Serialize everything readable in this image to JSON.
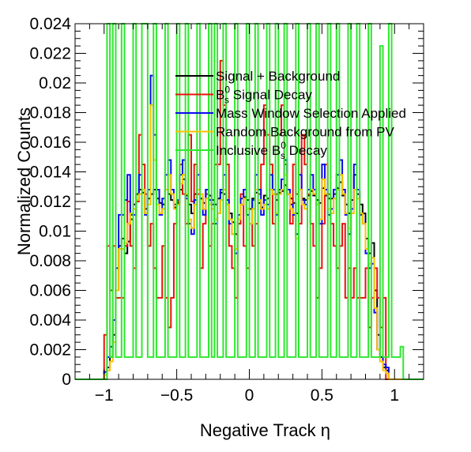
{
  "chart_data": {
    "type": "histogram",
    "xlabel": "Negative Track  η",
    "ylabel": "Normalized Counts",
    "xlim": [
      -1.2,
      1.2
    ],
    "ylim": [
      0,
      0.024
    ],
    "x_ticks": [
      -1,
      -0.5,
      0,
      0.5,
      1
    ],
    "x_tick_labels": [
      "−1",
      "−0.5",
      "0",
      "0.5",
      "1"
    ],
    "y_ticks": [
      0,
      0.002,
      0.004,
      0.006,
      0.008,
      0.01,
      0.012,
      0.014,
      0.016,
      0.018,
      0.02,
      0.022,
      0.024
    ],
    "y_tick_labels": [
      "0",
      "0.002",
      "0.004",
      "0.006",
      "0.008",
      "0.01",
      "0.012",
      "0.014",
      "0.016",
      "0.018",
      "0.02",
      "0.022",
      "0.024"
    ],
    "bins": {
      "min": -1.2,
      "max": 1.2,
      "count": 120
    },
    "legend_placement": "top-right",
    "series": [
      {
        "name": "Signal + Background",
        "color": "#000000",
        "values": [
          0,
          0,
          0,
          0,
          0,
          0,
          0,
          0,
          0,
          0,
          0.0005,
          0.0008,
          0.0015,
          0.003,
          0.006,
          0.009,
          0.0095,
          0.0085,
          0.0093,
          0.0108,
          0.0118,
          0.0125,
          0.0128,
          0.0126,
          0.0115,
          0.0122,
          0.0125,
          0.0128,
          0.0122,
          0.0119,
          0.0118,
          0.0128,
          0.0125,
          0.0121,
          0.0116,
          0.0119,
          0.0128,
          0.0135,
          0.0124,
          0.0118,
          0.0112,
          0.0125,
          0.0128,
          0.0122,
          0.0119,
          0.0128,
          0.0124,
          0.0121,
          0.0118,
          0.0122,
          0.0126,
          0.0125,
          0.0118,
          0.0112,
          0.0106,
          0.0098,
          0.0105,
          0.0118,
          0.0123,
          0.0121,
          0.0115,
          0.0122,
          0.0126,
          0.0119,
          0.0116,
          0.0124,
          0.0122,
          0.0128,
          0.0125,
          0.0121,
          0.0126,
          0.0127,
          0.0131,
          0.0125,
          0.0122,
          0.0119,
          0.0112,
          0.0128,
          0.0122,
          0.0121,
          0.0124,
          0.0127,
          0.0124,
          0.0121,
          0.0119,
          0.0129,
          0.0124,
          0.0122,
          0.0122,
          0.0125,
          0.0129,
          0.0133,
          0.0124,
          0.0118,
          0.0112,
          0.0121,
          0.0138,
          0.0125,
          0.0118,
          0.0112,
          0.0095,
          0.0085,
          0.0092,
          0.006,
          0.003,
          0.0015,
          0.0008,
          0.0006,
          0,
          0,
          0,
          0,
          0,
          0,
          0,
          0,
          0,
          0,
          0,
          0
        ]
      },
      {
        "name": "B_s^0 Signal Decay",
        "color": "#e8140c",
        "values": [
          0,
          0,
          0,
          0,
          0,
          0,
          0,
          0,
          0,
          0,
          0.003,
          0.009,
          0.006,
          0.009,
          0.0055,
          0.0055,
          0.0055,
          0.009,
          0.012,
          0.009,
          0.0075,
          0.012,
          0.0165,
          0.0145,
          0.0125,
          0.009,
          0.0105,
          0.0075,
          0.0055,
          0.0055,
          0.009,
          0.0055,
          0.0035,
          0.0055,
          0.0105,
          0.012,
          0.0145,
          0.0125,
          0.0105,
          0.0165,
          0.012,
          0.0145,
          0.0125,
          0.0075,
          0.0105,
          0.0125,
          0.009,
          0.0105,
          0.0145,
          0.0145,
          0.0215,
          0.0185,
          0.0145,
          0.009,
          0.0075,
          0.0055,
          0.0105,
          0.0125,
          0.009,
          0.0075,
          0.0105,
          0.009,
          0.0105,
          0.0125,
          0.0145,
          0.0185,
          0.0165,
          0.0145,
          0.0105,
          0.0125,
          0.0165,
          0.0185,
          0.0145,
          0.0125,
          0.0105,
          0.0145,
          0.0125,
          0.0105,
          0.0165,
          0.0145,
          0.0125,
          0.0105,
          0.009,
          0.0055,
          0.0075,
          0.0105,
          0.0145,
          0.0125,
          0.0105,
          0.009,
          0.0075,
          0.009,
          0.0105,
          0.0055,
          0.0075,
          0.0055,
          0.0075,
          0.0055,
          0.0055,
          0.0055,
          0.0075,
          0.0035,
          0.0055,
          0.0075,
          0.0055,
          0.0035,
          0.0055,
          0,
          0,
          0,
          0,
          0,
          0,
          0,
          0,
          0,
          0,
          0,
          0,
          0
        ]
      },
      {
        "name": "Mass Window Selection Applied",
        "color": "#0a0aee",
        "values": [
          0,
          0,
          0,
          0,
          0,
          0,
          0,
          0,
          0,
          0,
          0.0005,
          0.0015,
          0.0022,
          0.004,
          0.0075,
          0.0111,
          0.0111,
          0.0121,
          0.0138,
          0.0111,
          0.0111,
          0.0121,
          0.0138,
          0.0128,
          0.0111,
          0.0128,
          0.0205,
          0.0165,
          0.0128,
          0.0111,
          0.0122,
          0.0138,
          0.0148,
          0.0128,
          0.0118,
          0.0121,
          0.0138,
          0.0148,
          0.0122,
          0.0105,
          0.0098,
          0.0121,
          0.0138,
          0.0122,
          0.0111,
          0.0128,
          0.0121,
          0.0118,
          0.0105,
          0.0112,
          0.0128,
          0.0138,
          0.0121,
          0.0105,
          0.0098,
          0.0085,
          0.0111,
          0.0122,
          0.0128,
          0.0111,
          0.0105,
          0.0121,
          0.0138,
          0.0128,
          0.0111,
          0.0121,
          0.0118,
          0.0138,
          0.0128,
          0.0111,
          0.0128,
          0.0135,
          0.0148,
          0.0128,
          0.0118,
          0.0111,
          0.0098,
          0.0138,
          0.0121,
          0.0118,
          0.0128,
          0.0138,
          0.0128,
          0.0118,
          0.0105,
          0.0145,
          0.0128,
          0.0111,
          0.0115,
          0.0128,
          0.0138,
          0.0148,
          0.0128,
          0.0111,
          0.0098,
          0.0115,
          0.0145,
          0.0128,
          0.0111,
          0.0105,
          0.0085,
          0.0075,
          0.0078,
          0.0045,
          0.002,
          0.0015,
          0.001,
          0.0008,
          0,
          0,
          0,
          0,
          0,
          0,
          0,
          0,
          0,
          0,
          0,
          0
        ]
      },
      {
        "name": "Random Background from PV",
        "color": "#ffc000",
        "values": [
          0,
          0,
          0,
          0,
          0,
          0,
          0,
          0,
          0,
          0,
          0.0003,
          0.0006,
          0.0012,
          0.0025,
          0.006,
          0.0088,
          0.0088,
          0.0092,
          0.0105,
          0.0112,
          0.0115,
          0.0121,
          0.0125,
          0.0128,
          0.0112,
          0.0118,
          0.0185,
          0.0148,
          0.0118,
          0.0112,
          0.0115,
          0.0128,
          0.0138,
          0.0125,
          0.0115,
          0.0118,
          0.0132,
          0.0138,
          0.0125,
          0.0108,
          0.0102,
          0.0118,
          0.0128,
          0.0125,
          0.0115,
          0.0122,
          0.0118,
          0.0115,
          0.0108,
          0.0112,
          0.0121,
          0.0128,
          0.0118,
          0.0108,
          0.0098,
          0.0088,
          0.0108,
          0.0118,
          0.0122,
          0.0115,
          0.0105,
          0.0115,
          0.0128,
          0.0121,
          0.0115,
          0.0118,
          0.0115,
          0.0128,
          0.0125,
          0.0112,
          0.0125,
          0.0128,
          0.0138,
          0.0125,
          0.0115,
          0.0112,
          0.0095,
          0.0128,
          0.0118,
          0.0115,
          0.0122,
          0.0128,
          0.0125,
          0.0118,
          0.0108,
          0.0135,
          0.0125,
          0.0115,
          0.0112,
          0.0122,
          0.0128,
          0.0138,
          0.0125,
          0.0112,
          0.0102,
          0.0112,
          0.0128,
          0.0122,
          0.0112,
          0.0105,
          0.0088,
          0.0078,
          0.0082,
          0.0048,
          0.002,
          0.0012,
          0.0006,
          0.0004,
          0,
          0,
          0,
          0,
          0,
          0,
          0,
          0,
          0,
          0,
          0,
          0
        ]
      },
      {
        "name": "Inclusive B_s^0 Decay",
        "color": "#2ee82e",
        "values": [
          0,
          0,
          0,
          0,
          0,
          0,
          0,
          0,
          0,
          0,
          0,
          0.0245,
          0.0015,
          0.0245,
          0.0015,
          0.0015,
          0.0245,
          0.0015,
          0.0015,
          0.0015,
          0.0245,
          0.0015,
          0.0015,
          0.0245,
          0.0245,
          0.0015,
          0.0015,
          0.0245,
          0.0015,
          0.0015,
          0.0015,
          0.0245,
          0.0015,
          0.0015,
          0.0015,
          0.0245,
          0.0015,
          0.0015,
          0.0245,
          0.0015,
          0.0015,
          0.0015,
          0.0245,
          0.0015,
          0.0015,
          0.0015,
          0.0245,
          0.0015,
          0.0245,
          0.0015,
          0.0015,
          0.0245,
          0.0015,
          0.0015,
          0.0015,
          0.0245,
          0.0015,
          0.0015,
          0.0015,
          0.0245,
          0.0015,
          0.0015,
          0.0245,
          0.0015,
          0.0015,
          0.0015,
          0.0245,
          0.0015,
          0.0015,
          0.0245,
          0.0015,
          0.0015,
          0.0245,
          0.0015,
          0.0015,
          0.0015,
          0.0245,
          0.0015,
          0.0015,
          0.0015,
          0.0245,
          0.0015,
          0.0015,
          0.0245,
          0.0015,
          0.0015,
          0.0015,
          0.0245,
          0.0015,
          0.0015,
          0.0245,
          0.0015,
          0.0015,
          0.0015,
          0.0245,
          0.0015,
          0.0015,
          0.0245,
          0.0015,
          0.0015,
          0.0015,
          0.0245,
          0.0015,
          0.0015,
          0.0015,
          0.0225,
          0.0015,
          0.0015,
          0.0245,
          0.0015,
          0.0015,
          0.0015,
          0.0022,
          0,
          0,
          0,
          0,
          0,
          0,
          0
        ]
      }
    ]
  }
}
